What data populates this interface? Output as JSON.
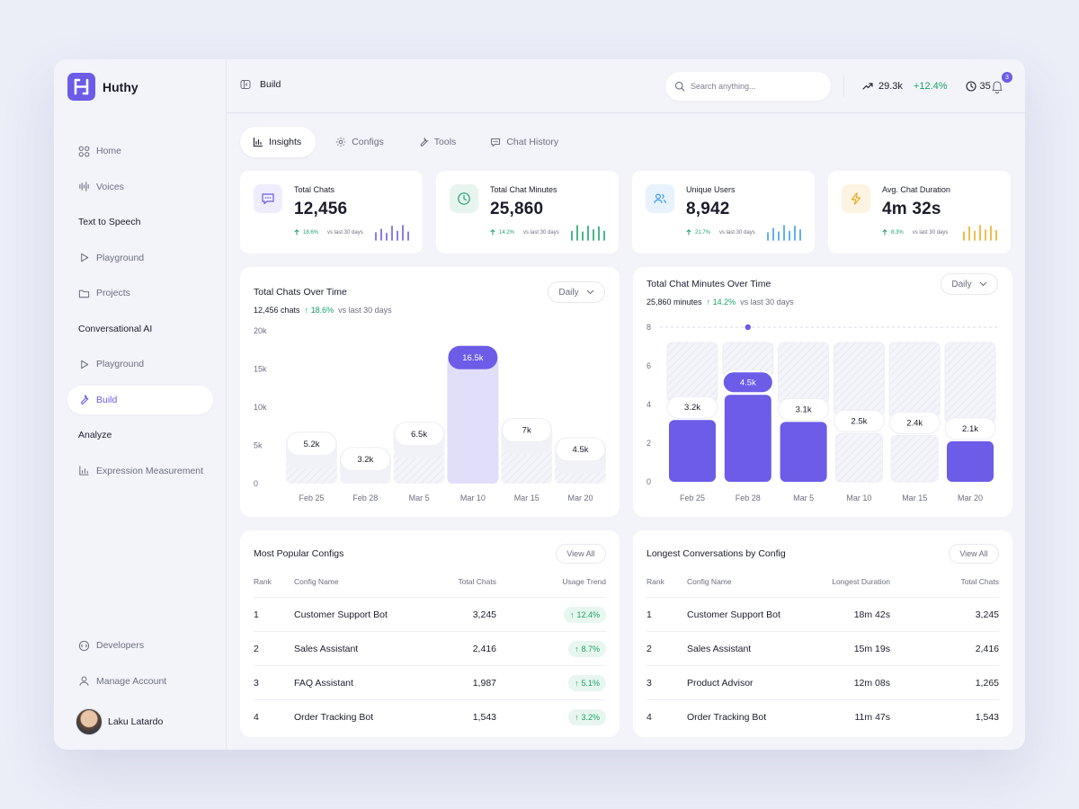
{
  "app": {
    "name": "Huthy"
  },
  "sidebar": {
    "items": [
      {
        "label": "Home"
      },
      {
        "label": "Voices"
      },
      {
        "label": "Text to Speech"
      },
      {
        "label": "Playground"
      },
      {
        "label": "Projects"
      },
      {
        "label": "Conversational AI"
      },
      {
        "label": "Playground"
      },
      {
        "label": "Build"
      },
      {
        "label": "Analyze"
      },
      {
        "label": "Expression Measurement"
      }
    ],
    "bottom": [
      {
        "label": "Developers"
      },
      {
        "label": "Manage  Account"
      }
    ],
    "user": "Laku Latardo"
  },
  "topbar": {
    "breadcrumb": "Build",
    "search_placeholder": "Search anything...",
    "stat_value": "29.3k",
    "stat_pct": "+12.4%",
    "clock_value": "35",
    "notifications": "3"
  },
  "tabs": [
    {
      "label": "Insights"
    },
    {
      "label": "Configs"
    },
    {
      "label": "Tools"
    },
    {
      "label": "Chat History"
    }
  ],
  "colors": {
    "accent": "#6c5ce7",
    "green": "#1aa36a",
    "blue": "#3b9cf0",
    "amber": "#f0a81e"
  },
  "cards": [
    {
      "label": "Total Chats",
      "value": "12,456",
      "delta": "18.6%",
      "vs": "vs last 30 days",
      "icon": "chat-icon",
      "spark_color": "#6c5ce7",
      "spark": [
        0.5,
        0.75,
        0.45,
        0.95,
        0.6,
        1.0,
        0.55
      ]
    },
    {
      "label": "Total Chat Minutes",
      "value": "25,860",
      "delta": "14.2%",
      "vs": "vs last 30 days",
      "icon": "clock-icon",
      "spark_color": "#1aa36a",
      "spark": [
        0.6,
        1.0,
        0.55,
        0.95,
        0.7,
        0.9,
        0.6
      ]
    },
    {
      "label": "Unique Users",
      "value": "8,942",
      "delta": "21.7%",
      "vs": "vs last 30 days",
      "icon": "users-icon",
      "spark_color": "#3b9cf0",
      "spark": [
        0.5,
        0.8,
        0.55,
        1.0,
        0.6,
        0.95,
        0.7
      ]
    },
    {
      "label": "Avg. Chat Duration",
      "value": "4m 32s",
      "delta": "8.3%",
      "vs": "vs last 30 days",
      "icon": "bolt-icon",
      "spark_color": "#f0a81e",
      "spark": [
        0.55,
        0.9,
        0.6,
        1.0,
        0.7,
        0.95,
        0.65
      ]
    }
  ],
  "chart1": {
    "title": "Total Chats Over Time",
    "total": "12,456 chats",
    "delta": "18.6%",
    "vs": "vs last 30 days",
    "period": "Daily"
  },
  "chart2": {
    "title": "Total Chat Minutes Over Time",
    "total": "25,860 minutes",
    "delta": "14.2%",
    "vs": "vs last 30 days",
    "period": "Daily"
  },
  "chart_data": [
    {
      "type": "bar",
      "title": "Total Chats Over Time",
      "categories": [
        "Feb 25",
        "Feb 28",
        "Mar 5",
        "Mar 10",
        "Mar 15",
        "Mar 20"
      ],
      "values": [
        5.2,
        3.2,
        6.5,
        16.5,
        7,
        4.5
      ],
      "labels": [
        "5.2k",
        "3.2k",
        "6.5k",
        "16.5k",
        "7k",
        "4.5k"
      ],
      "yticks": [
        "0",
        "5k",
        "10k",
        "15k",
        "20k"
      ],
      "ylim": [
        0,
        20
      ],
      "highlight": 3
    },
    {
      "type": "bar",
      "title": "Total Chat Minutes Over Time",
      "categories": [
        "Feb 25",
        "Feb 28",
        "Mar 5",
        "Mar 10",
        "Mar 15",
        "Mar 20"
      ],
      "values": [
        3.2,
        4.5,
        3.1,
        2.5,
        2.4,
        2.1
      ],
      "labels": [
        "3.2k",
        "4.5k",
        "3.1k",
        "2.5k",
        "2.4k",
        "2.1k"
      ],
      "yticks": [
        "0",
        "2",
        "4",
        "6",
        "8"
      ],
      "ylim": [
        0,
        8
      ],
      "filled": [
        true,
        true,
        true,
        false,
        false,
        true
      ],
      "highlight": 1
    }
  ],
  "popular": {
    "title": "Most Popular Configs",
    "view_all": "View All",
    "headers": [
      "Rank",
      "Config Name",
      "Total Chats",
      "Usage Trend"
    ],
    "rows": [
      {
        "rank": "1",
        "name": "Customer Support Bot",
        "chats": "3,245",
        "trend": "12.4%"
      },
      {
        "rank": "2",
        "name": "Sales Assistant",
        "chats": "2,416",
        "trend": "8.7%"
      },
      {
        "rank": "3",
        "name": "FAQ Assistant",
        "chats": "1,987",
        "trend": "5.1%"
      },
      {
        "rank": "4",
        "name": "Order Tracking Bot",
        "chats": "1,543",
        "trend": "3.2%"
      }
    ]
  },
  "longest": {
    "title": "Longest Conversations by Config",
    "view_all": "View All",
    "headers": [
      "Rank",
      "Config Name",
      "Longest Duration",
      "Total Chats"
    ],
    "rows": [
      {
        "rank": "1",
        "name": "Customer Support Bot",
        "duration": "18m 42s",
        "chats": "3,245"
      },
      {
        "rank": "2",
        "name": "Sales Assistant",
        "duration": "15m 19s",
        "chats": "2,416"
      },
      {
        "rank": "3",
        "name": "Product Advisor",
        "duration": "12m 08s",
        "chats": "1,265"
      },
      {
        "rank": "4",
        "name": "Order Tracking Bot",
        "duration": "11m 47s",
        "chats": "1,543"
      }
    ]
  }
}
